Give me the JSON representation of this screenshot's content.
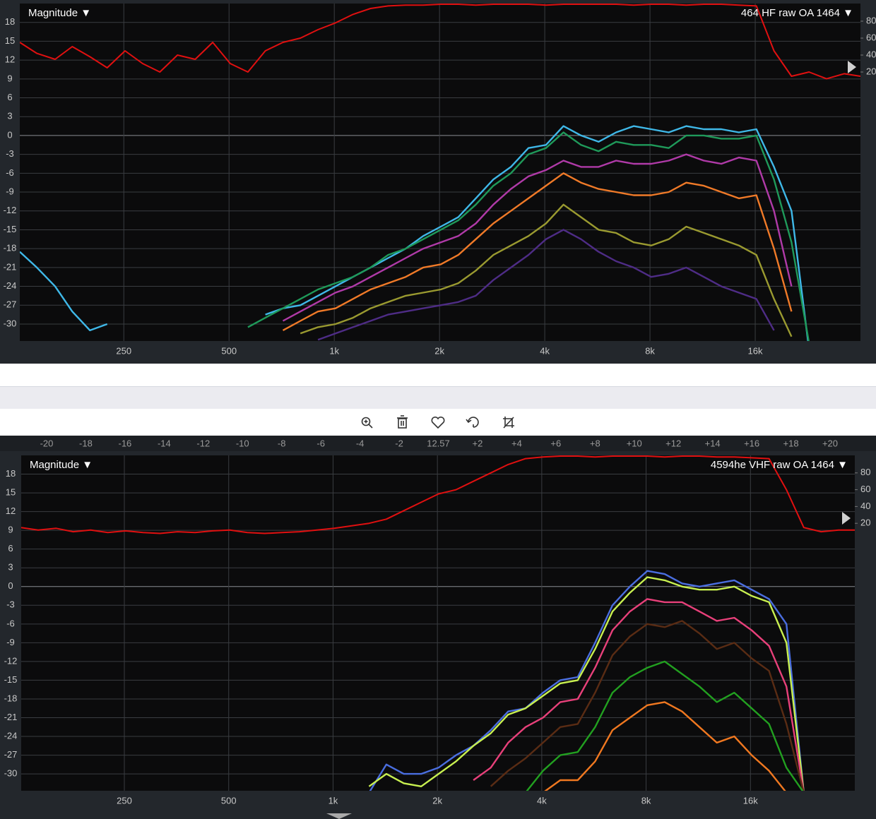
{
  "chart_data": [
    {
      "type": "line",
      "title": "Magnitude ▼",
      "subtitle": "464 HF raw OA 1464 ▼",
      "log_x": true,
      "grid": true,
      "x": [
        126,
        141,
        159,
        178,
        200,
        224,
        252,
        283,
        317,
        356,
        400,
        449,
        504,
        566,
        635,
        713,
        800,
        898,
        1008,
        1131,
        1270,
        1425,
        1600,
        1796,
        2016,
        2263,
        2540,
        2851,
        3200,
        3592,
        4032,
        4525,
        5080,
        5702,
        6400,
        7184,
        8064,
        9051,
        10159,
        11404,
        12800,
        14368,
        16127,
        18102,
        20319,
        22807,
        25600,
        28735,
        32000
      ],
      "xlim": [
        126,
        32000
      ],
      "xticks": [
        250,
        500,
        {
          "value": 1000,
          "label": "1k"
        },
        {
          "value": 2000,
          "label": "2k"
        },
        {
          "value": 4000,
          "label": "4k"
        },
        {
          "value": 8000,
          "label": "8k"
        },
        {
          "value": 16000,
          "label": "16k"
        }
      ],
      "ylim": [
        -32.7,
        21
      ],
      "yticks": [
        18,
        15,
        12,
        9,
        6,
        3,
        0,
        -3,
        -6,
        -9,
        -12,
        -15,
        -18,
        -21,
        -24,
        -27,
        -30
      ],
      "y2lim": [
        0,
        100
      ],
      "y2ticks": [
        80,
        60,
        40,
        20
      ],
      "series": [
        {
          "color": "#e01010",
          "axis": "y2",
          "values": [
            55,
            42,
            35,
            50,
            38,
            25,
            45,
            30,
            20,
            40,
            35,
            55,
            30,
            20,
            45,
            55,
            60,
            70,
            78,
            88,
            95,
            98,
            99,
            99,
            100,
            100,
            99,
            100,
            100,
            100,
            99,
            100,
            100,
            100,
            100,
            99,
            100,
            100,
            99,
            100,
            100,
            99,
            98,
            45,
            15,
            20,
            12,
            18,
            15
          ]
        },
        {
          "color": "#3fb8e8",
          "values": [
            -18.5,
            -21,
            -24,
            -28,
            -31,
            -30,
            null,
            null,
            null,
            null,
            null,
            null,
            null,
            null,
            -28.5,
            -27.5,
            -27,
            -25.5,
            -24,
            -22.5,
            -21,
            -19.5,
            -18,
            -16,
            -14.5,
            -13,
            -10,
            -7,
            -5,
            -2,
            -1.5,
            1.5,
            0,
            -1,
            0.5,
            1.5,
            1,
            0.5,
            1.5,
            1,
            1,
            0.5,
            1,
            -5,
            -12,
            -34,
            null,
            null,
            null
          ]
        },
        {
          "color": "#1f9a5a",
          "values": [
            null,
            null,
            null,
            null,
            null,
            null,
            null,
            null,
            null,
            null,
            null,
            null,
            null,
            -30.5,
            -29,
            -27.5,
            -26,
            -24.5,
            -23.5,
            -22.5,
            -21,
            -19,
            -18,
            -16.5,
            -15,
            -13.5,
            -11,
            -8,
            -6,
            -3,
            -2,
            0.5,
            -1.5,
            -2.5,
            -1,
            -1.5,
            -1.5,
            -2,
            0,
            0,
            -0.5,
            -0.5,
            0,
            -7,
            -17,
            -33,
            null,
            null,
            null
          ]
        },
        {
          "color": "#b03aa8",
          "values": [
            null,
            null,
            null,
            null,
            null,
            null,
            null,
            null,
            null,
            null,
            null,
            null,
            null,
            null,
            null,
            -29.5,
            -28,
            -26.5,
            -25,
            -24,
            -22.5,
            -21,
            -19.5,
            -18,
            -17,
            -16,
            -14,
            -11,
            -8.5,
            -6.5,
            -5.5,
            -4,
            -5,
            -5,
            -4,
            -4.5,
            -4.5,
            -4,
            -3,
            -4,
            -4.5,
            -3.5,
            -4,
            -12,
            -24,
            null,
            null,
            null,
            null
          ]
        },
        {
          "color": "#f07a28",
          "values": [
            null,
            null,
            null,
            null,
            null,
            null,
            null,
            null,
            null,
            null,
            null,
            null,
            null,
            null,
            null,
            -31,
            -29.5,
            -28,
            -27.5,
            -26,
            -24.5,
            -23.5,
            -22.5,
            -21,
            -20.5,
            -19,
            -16.5,
            -14,
            -12,
            -10,
            -8,
            -6,
            -7.5,
            -8.5,
            -9,
            -9.5,
            -9.5,
            -9,
            -7.5,
            -8,
            -9,
            -10,
            -9.5,
            -18,
            -28,
            null,
            null,
            null,
            null
          ]
        },
        {
          "color": "#9a9a30",
          "values": [
            null,
            null,
            null,
            null,
            null,
            null,
            null,
            null,
            null,
            null,
            null,
            null,
            null,
            null,
            null,
            null,
            -31.5,
            -30.5,
            -30,
            -29,
            -27.5,
            -26.5,
            -25.5,
            -25,
            -24.5,
            -23.5,
            -21.5,
            -19,
            -17.5,
            -16,
            -14,
            -11,
            -13,
            -15,
            -15.5,
            -17,
            -17.5,
            -16.5,
            -14.5,
            -15.5,
            -16.5,
            -17.5,
            -19,
            -26,
            -32,
            null,
            null,
            null,
            null
          ]
        },
        {
          "color": "#4e2c86",
          "values": [
            null,
            null,
            null,
            null,
            null,
            null,
            null,
            null,
            null,
            null,
            null,
            null,
            null,
            null,
            null,
            null,
            null,
            -32.5,
            -31.5,
            -30.5,
            -29.5,
            -28.5,
            -28,
            -27.5,
            -27,
            -26.5,
            -25.5,
            -23,
            -21,
            -19,
            -16.5,
            -15,
            -16.5,
            -18.5,
            -20,
            -21,
            -22.5,
            -22,
            -21,
            -22.5,
            -24,
            -25,
            -26,
            -31,
            null,
            null,
            null,
            null,
            null
          ]
        }
      ]
    },
    {
      "type": "line",
      "title": "Magnitude ▼",
      "subtitle": "4594he VHF raw OA 1464 ▼",
      "log_x": true,
      "grid": true,
      "x": [
        126,
        141,
        159,
        178,
        200,
        224,
        252,
        283,
        317,
        356,
        400,
        449,
        504,
        566,
        635,
        713,
        800,
        898,
        1008,
        1131,
        1270,
        1425,
        1600,
        1796,
        2016,
        2263,
        2540,
        2851,
        3200,
        3592,
        4032,
        4525,
        5080,
        5702,
        6400,
        7184,
        8064,
        9051,
        10159,
        11404,
        12800,
        14368,
        16127,
        18102,
        20319,
        22807,
        25600,
        28735,
        32000
      ],
      "xlim": [
        126,
        32000
      ],
      "xticks": [
        250,
        500,
        {
          "value": 1000,
          "label": "1k"
        },
        {
          "value": 2000,
          "label": "2k"
        },
        {
          "value": 4000,
          "label": "4k"
        },
        {
          "value": 8000,
          "label": "8k"
        },
        {
          "value": 16000,
          "label": "16k"
        }
      ],
      "ylim": [
        -32.7,
        21
      ],
      "yticks": [
        18,
        15,
        12,
        9,
        6,
        3,
        0,
        -3,
        -6,
        -9,
        -12,
        -15,
        -18,
        -21,
        -24,
        -27,
        -30
      ],
      "y2lim": [
        0,
        100
      ],
      "y2ticks": [
        80,
        60,
        40,
        20
      ],
      "series": [
        {
          "color": "#e01010",
          "axis": "y2",
          "values": [
            15,
            12,
            14,
            10,
            12,
            9,
            11,
            9,
            8,
            10,
            9,
            11,
            12,
            9,
            8,
            9,
            10,
            12,
            14,
            17,
            20,
            25,
            35,
            45,
            55,
            60,
            70,
            80,
            90,
            97,
            99,
            100,
            100,
            99,
            100,
            100,
            100,
            99,
            100,
            100,
            99,
            99,
            98,
            97,
            60,
            15,
            10,
            12,
            12
          ]
        },
        {
          "color": "#4a6ee0",
          "values": [
            null,
            null,
            null,
            null,
            null,
            null,
            null,
            null,
            null,
            null,
            null,
            null,
            null,
            null,
            null,
            null,
            null,
            null,
            null,
            null,
            -33,
            -28.5,
            -30,
            -30,
            -29,
            -27,
            -25.5,
            -23,
            -20,
            -19.5,
            -17,
            -15,
            -14.5,
            -9,
            -3,
            0,
            2.5,
            2,
            0.5,
            0,
            0.5,
            1,
            -0.5,
            -2,
            -6,
            -33,
            null,
            null,
            null
          ]
        },
        {
          "color": "#c8f050",
          "values": [
            null,
            null,
            null,
            null,
            null,
            null,
            null,
            null,
            null,
            null,
            null,
            null,
            null,
            null,
            null,
            null,
            null,
            null,
            null,
            null,
            -32,
            -30,
            -31.5,
            -32,
            -30,
            -28,
            -25.5,
            -23.5,
            -20.5,
            -19.5,
            -17.5,
            -15.5,
            -15,
            -10,
            -4,
            -1,
            1.5,
            1,
            0,
            -0.5,
            -0.5,
            0,
            -1.5,
            -2.5,
            -9,
            -33,
            null,
            null,
            null
          ]
        },
        {
          "color": "#e8407a",
          "values": [
            null,
            null,
            null,
            null,
            null,
            null,
            null,
            null,
            null,
            null,
            null,
            null,
            null,
            null,
            null,
            null,
            null,
            null,
            null,
            null,
            null,
            null,
            null,
            null,
            null,
            null,
            -31,
            -29,
            -25,
            -22.5,
            -21,
            -18.5,
            -18,
            -13,
            -7,
            -4,
            -2,
            -2.5,
            -2.5,
            -4,
            -5.5,
            -5,
            -7,
            -9.5,
            -16,
            -33,
            null,
            null,
            null
          ]
        },
        {
          "color": "#5a2c14",
          "values": [
            null,
            null,
            null,
            null,
            null,
            null,
            null,
            null,
            null,
            null,
            null,
            null,
            null,
            null,
            null,
            null,
            null,
            null,
            null,
            null,
            null,
            null,
            null,
            null,
            null,
            null,
            null,
            -32,
            -29.5,
            -27.5,
            -25,
            -22.5,
            -22,
            -17,
            -11,
            -8,
            -6,
            -6.5,
            -5.5,
            -7.5,
            -10,
            -9,
            -11.5,
            -13.5,
            -22,
            -33,
            null,
            null,
            null
          ]
        },
        {
          "color": "#22a020",
          "values": [
            null,
            null,
            null,
            null,
            null,
            null,
            null,
            null,
            null,
            null,
            null,
            null,
            null,
            null,
            null,
            null,
            null,
            null,
            null,
            null,
            null,
            null,
            null,
            null,
            null,
            null,
            null,
            null,
            null,
            -33,
            -29.5,
            -27,
            -26.5,
            -22.5,
            -17,
            -14.5,
            -13,
            -12,
            -14,
            -16,
            -18.5,
            -17,
            -19.5,
            -22,
            -29,
            -33,
            null,
            null,
            null
          ]
        },
        {
          "color": "#f07820",
          "values": [
            null,
            null,
            null,
            null,
            null,
            null,
            null,
            null,
            null,
            null,
            null,
            null,
            null,
            null,
            null,
            null,
            null,
            null,
            null,
            null,
            null,
            null,
            null,
            null,
            null,
            null,
            null,
            null,
            null,
            null,
            -33,
            -31,
            -31,
            -28,
            -23,
            -21,
            -19,
            -18.5,
            -20,
            -22.5,
            -25,
            -24,
            -27,
            -29.5,
            -33,
            null,
            null,
            null,
            null
          ]
        }
      ]
    }
  ],
  "delay_scale": {
    "labels": [
      "-20",
      "-18",
      "-16",
      "-14",
      "-12",
      "-10",
      "-8",
      "-6",
      "-4",
      "-2",
      "12.57",
      "+2",
      "+4",
      "+6",
      "+8",
      "+10",
      "+12",
      "+14",
      "+16",
      "+18",
      "+20"
    ]
  }
}
